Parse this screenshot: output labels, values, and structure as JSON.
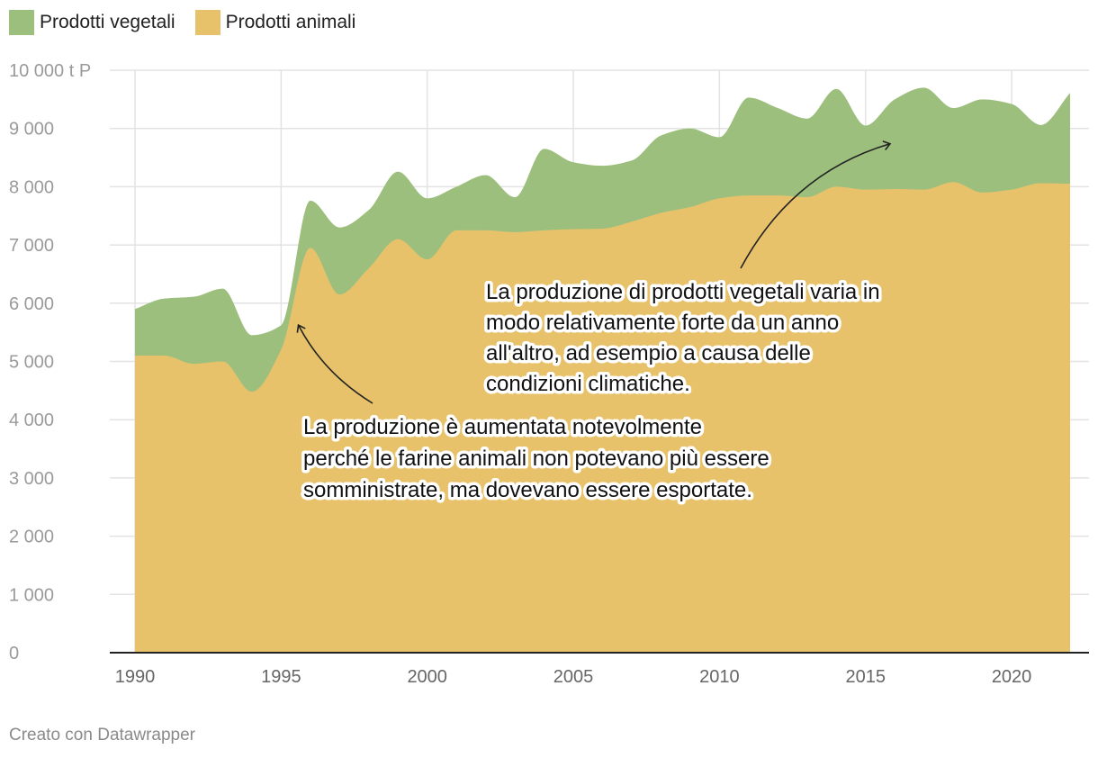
{
  "colors": {
    "vegetal": "#9dbf7e",
    "animal": "#e7c26b",
    "grid": "#e3e3e3",
    "axis": "#222222"
  },
  "legend": [
    {
      "key": "vegetal",
      "label": "Prodotti vegetali"
    },
    {
      "key": "animal",
      "label": "Prodotti animali"
    }
  ],
  "credit": "Creato con Datawrapper",
  "chart_data": {
    "type": "area",
    "stacked": true,
    "unit_label": "10 000 t P",
    "y_ticks": [
      {
        "value": 0,
        "label": "0"
      },
      {
        "value": 1000,
        "label": "1 000"
      },
      {
        "value": 2000,
        "label": "2 000"
      },
      {
        "value": 3000,
        "label": "3 000"
      },
      {
        "value": 4000,
        "label": "4 000"
      },
      {
        "value": 5000,
        "label": "5 000"
      },
      {
        "value": 6000,
        "label": "6 000"
      },
      {
        "value": 7000,
        "label": "7 000"
      },
      {
        "value": 8000,
        "label": "8 000"
      },
      {
        "value": 9000,
        "label": "9 000"
      },
      {
        "value": 10000,
        "label": "10 000 t P"
      }
    ],
    "x_ticks": [
      1990,
      1995,
      2000,
      2005,
      2010,
      2015,
      2020
    ],
    "xlim": [
      1990,
      2022
    ],
    "ylim": [
      0,
      10000
    ],
    "x": [
      1990,
      1991,
      1992,
      1993,
      1994,
      1995,
      1996,
      1997,
      1998,
      1999,
      2000,
      2001,
      2002,
      2003,
      2004,
      2005,
      2006,
      2007,
      2008,
      2009,
      2010,
      2011,
      2012,
      2013,
      2014,
      2015,
      2016,
      2017,
      2018,
      2019,
      2020,
      2021,
      2022
    ],
    "series": [
      {
        "name": "Prodotti animali",
        "key": "animal",
        "values": [
          5100,
          5100,
          4960,
          5000,
          4480,
          5200,
          6950,
          6150,
          6600,
          7100,
          6750,
          7250,
          7250,
          7220,
          7250,
          7270,
          7280,
          7400,
          7550,
          7650,
          7800,
          7850,
          7850,
          7820,
          8000,
          7950,
          7960,
          7950,
          8080,
          7900,
          7950,
          8060,
          8050
        ]
      },
      {
        "name": "Prodotti vegetali",
        "key": "vegetal",
        "values": [
          800,
          980,
          1150,
          1250,
          970,
          420,
          810,
          1150,
          1000,
          1160,
          1050,
          750,
          950,
          600,
          1400,
          1150,
          1080,
          1050,
          1330,
          1350,
          1050,
          1680,
          1500,
          1350,
          1680,
          1100,
          1540,
          1750,
          1270,
          1600,
          1470,
          1000,
          1560
        ]
      }
    ],
    "annotations": [
      {
        "lines": [
          "La produzione di prodotti vegetali varia in",
          "modo relativamente forte da un anno",
          "all'altro, ad esempio a causa delle",
          "condizioni climatiche."
        ]
      },
      {
        "lines": [
          "La produzione è aumentata notevolmente",
          "perché le farine animali non potevano più essere",
          "somministrate, ma dovevano essere esportate."
        ]
      }
    ]
  }
}
